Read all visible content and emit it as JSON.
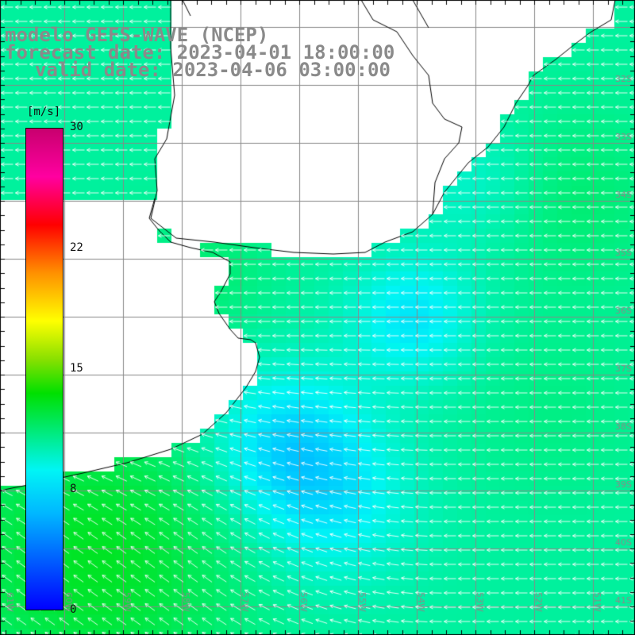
{
  "title": {
    "line1": "modelo GEFS-WAVE (NCEP)",
    "line2": "forecast date: 2023-04-01 18:00:00",
    "line3": "valid date: 2023-04-06 03:00:00"
  },
  "colorbar": {
    "unit": "[m/s]",
    "ticks": [
      "30",
      "22",
      "15",
      "8",
      "0"
    ],
    "tick_values": [
      30,
      22,
      15,
      8,
      0
    ],
    "colors": [
      "#0000ff",
      "#00b7ff",
      "#00f5f5",
      "#00e000",
      "#88e000",
      "#ffff00",
      "#ff9000",
      "#ff0000",
      "#ff00a0",
      "#c8006e"
    ]
  },
  "axes": {
    "lat_labels": [
      "32S",
      "33S",
      "34S",
      "35S",
      "36S",
      "37S",
      "38S",
      "39S",
      "40S",
      "41S"
    ],
    "lon_labels": [
      "61W",
      "60W",
      "59W",
      "58W",
      "57W",
      "56W",
      "55W",
      "54W",
      "53W",
      "52W",
      "51W"
    ]
  },
  "map": {
    "region": "Rio de la Plata / Uruguay / Southern Brazil coast",
    "field": "wind speed with direction arrows",
    "land_color": "#ffffff",
    "grid": true
  }
}
